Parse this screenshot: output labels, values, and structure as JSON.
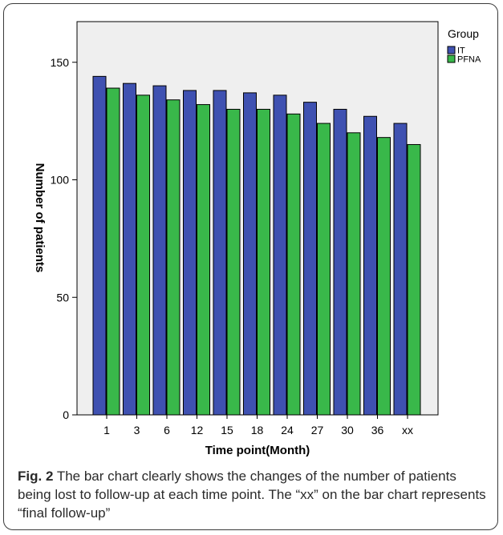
{
  "caption": {
    "label": "Fig. 2",
    "text": "The bar chart clearly shows the changes of the number of patients being lost to follow-up at each time point. The “xx” on the bar chart represents “final follow-up”"
  },
  "chart_data": {
    "type": "bar",
    "title": "",
    "xlabel": "Time point(Month)",
    "ylabel": "Number of patients",
    "categories": [
      "1",
      "3",
      "6",
      "12",
      "15",
      "18",
      "24",
      "27",
      "30",
      "36",
      "xx"
    ],
    "ylim": [
      0,
      165
    ],
    "yticks": [
      0,
      50,
      100,
      150
    ],
    "grid": false,
    "legend": {
      "title": "Group",
      "position": "right"
    },
    "series": [
      {
        "name": "IT",
        "color": "#3f51b1",
        "values": [
          144,
          141,
          140,
          138,
          138,
          137,
          136,
          133,
          130,
          127,
          124
        ]
      },
      {
        "name": "PFNA",
        "color": "#39b84a",
        "values": [
          139,
          136,
          134,
          132,
          130,
          130,
          128,
          124,
          120,
          118,
          115
        ]
      }
    ]
  }
}
